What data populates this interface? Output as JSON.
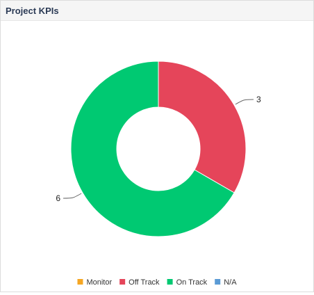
{
  "widget": {
    "title": "Project KPIs"
  },
  "chart_data": {
    "type": "pie",
    "donut": true,
    "categories": [
      "Monitor",
      "Off Track",
      "On Track",
      "N/A"
    ],
    "values": [
      0,
      3,
      6,
      0
    ],
    "colors": [
      "#f5a623",
      "#e5455a",
      "#00c972",
      "#5b9bd5"
    ],
    "legend": "bottom",
    "data_labels": [
      "",
      "3",
      "6",
      ""
    ]
  }
}
